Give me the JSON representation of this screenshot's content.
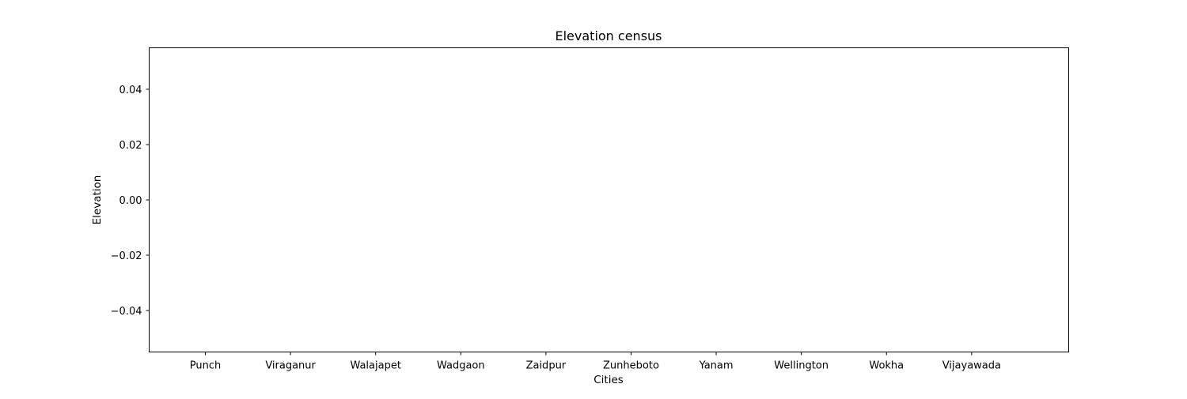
{
  "chart_data": {
    "type": "bar",
    "title": "Elevation census",
    "xlabel": "Cities",
    "ylabel": "Elevation",
    "categories": [
      "Punch",
      "Viraganur",
      "Walajapet",
      "Wadgaon",
      "Zaidpur",
      "Zunheboto",
      "Yanam",
      "Wellington",
      "Wokha",
      "Vijayawada"
    ],
    "values": [
      0,
      0,
      0,
      0,
      0,
      0,
      0,
      0,
      0,
      0
    ],
    "ylim": [
      -0.055,
      0.055
    ],
    "yticks": [
      0.04,
      0.02,
      0.0,
      -0.02,
      -0.04
    ],
    "ytick_labels": [
      "0.04",
      "0.02",
      "0.00",
      "−0.02",
      "−0.04"
    ],
    "grid": false,
    "bar_color": "#1f77b4"
  }
}
